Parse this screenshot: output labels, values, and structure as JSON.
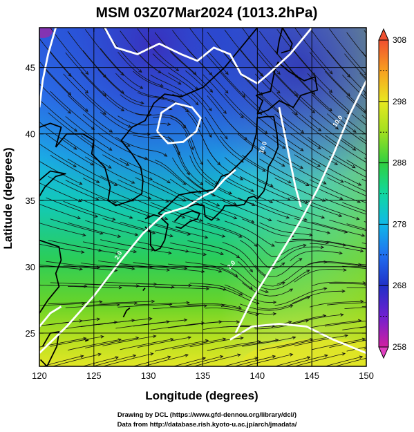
{
  "title": "MSM 03Z07Mar2024 (1013.2hPa)",
  "xlabel": "Longitude (degrees)",
  "ylabel": "Latitude  (degrees)",
  "credits": [
    "Drawing by DCL (https://www.gfd-dennou.org/library/dcl/)",
    "Data from http://database.rish.kyoto-u.ac.jp/arch/jmadata/"
  ],
  "chart_data": {
    "type": "heatmap",
    "title": "MSM 03Z07Mar2024 (1013.2hPa)",
    "xlabel": "Longitude (degrees)",
    "ylabel": "Latitude  (degrees)",
    "xlim": [
      120,
      150
    ],
    "ylim": [
      22.5,
      48
    ],
    "xticks": [
      120,
      125,
      130,
      135,
      140,
      145,
      150
    ],
    "yticks": [
      25,
      30,
      35,
      40,
      45
    ],
    "grid": true,
    "colorbar": {
      "range": [
        258,
        308
      ],
      "ticks": [
        258,
        268,
        278,
        288,
        298,
        308
      ],
      "colors": [
        "#d020a0",
        "#7020d0",
        "#2030c8",
        "#2070f0",
        "#10b8e8",
        "#10d8a0",
        "#30d040",
        "#a0e020",
        "#e8e820",
        "#f8a020",
        "#f05030"
      ]
    },
    "contour_labels": [
      "10.0",
      "2.0",
      "10.0",
      "2.0"
    ],
    "overlay": "wind streamlines"
  }
}
